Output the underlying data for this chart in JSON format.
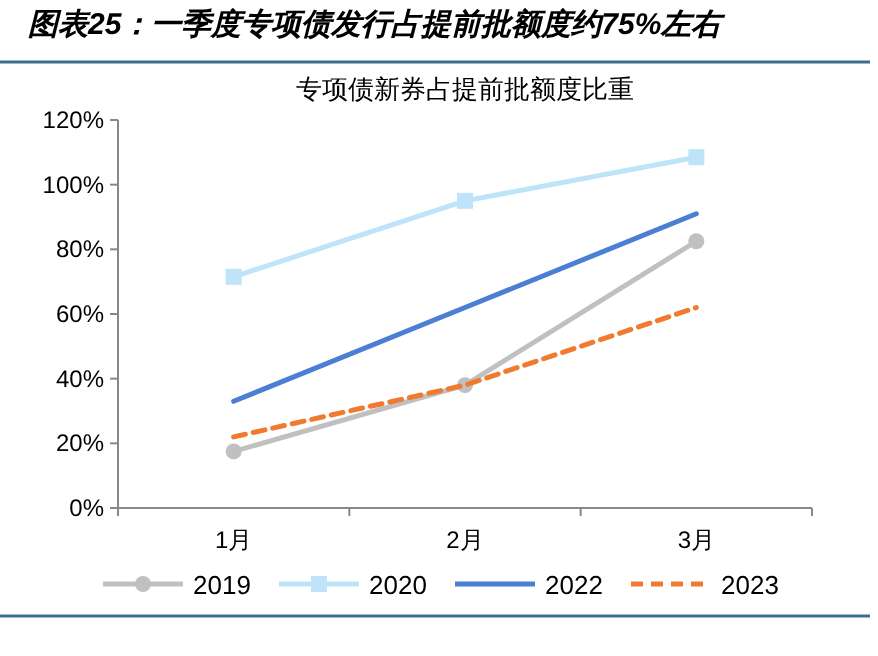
{
  "chart_data": {
    "type": "line",
    "title": "图表25：一季度专项债发行占提前批额度约75%左右",
    "subtitle": "专项债新券占提前批额度比重",
    "categories": [
      "1月",
      "2月",
      "3月"
    ],
    "series": [
      {
        "name": "2019",
        "color": "#c0c0c0",
        "values": [
          17.5,
          38,
          82.5
        ],
        "marker": "circle",
        "line_style": "solid"
      },
      {
        "name": "2020",
        "color": "#bfe3f8",
        "values": [
          71.5,
          95,
          108.5
        ],
        "marker": "square",
        "line_style": "solid"
      },
      {
        "name": "2022",
        "color": "#4a7fd4",
        "values": [
          33,
          62,
          91
        ],
        "marker": "none",
        "line_style": "solid"
      },
      {
        "name": "2023",
        "color": "#f07a30",
        "values": [
          22,
          38,
          62
        ],
        "marker": "none",
        "line_style": "dashed"
      }
    ],
    "ylim": [
      0,
      120
    ],
    "yticks": [
      {
        "value": 0,
        "label": "0%"
      },
      {
        "value": 20,
        "label": "20%"
      },
      {
        "value": 40,
        "label": "40%"
      },
      {
        "value": 60,
        "label": "60%"
      },
      {
        "value": 80,
        "label": "80%"
      },
      {
        "value": 100,
        "label": "100%"
      },
      {
        "value": 120,
        "label": "120%"
      }
    ],
    "grid": false,
    "legend": "bottom"
  }
}
